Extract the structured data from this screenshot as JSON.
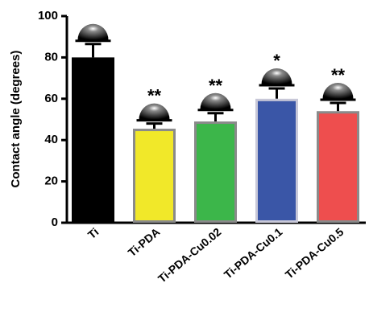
{
  "chart_data": {
    "type": "bar",
    "title": "",
    "xlabel": "",
    "ylabel": "Contact angle (degrees)",
    "ylim": [
      0,
      100
    ],
    "yticks": [
      0,
      20,
      40,
      60,
      80,
      100
    ],
    "grid": false,
    "categories": [
      "Ti",
      "Ti-PDA",
      "Ti-PDA-Cu0.02",
      "Ti-PDA-Cu0.1",
      "Ti-PDA-Cu0.5"
    ],
    "values": [
      80,
      45.5,
      49,
      60,
      54
    ],
    "errors": [
      6.5,
      2.5,
      4,
      5,
      4
    ],
    "significance": [
      "",
      "**",
      "**",
      "*",
      "**"
    ],
    "bar_colors": [
      "#000000",
      "#f1e829",
      "#3cb64a",
      "#3a56a7",
      "#ee4e4e"
    ],
    "bar_edge_colors": [
      "#000000",
      "#8a8a8a",
      "#8a8a8a",
      "#c8c8d8",
      "#8a8a8a"
    ],
    "droplet_icon": "water-droplet-icon"
  }
}
